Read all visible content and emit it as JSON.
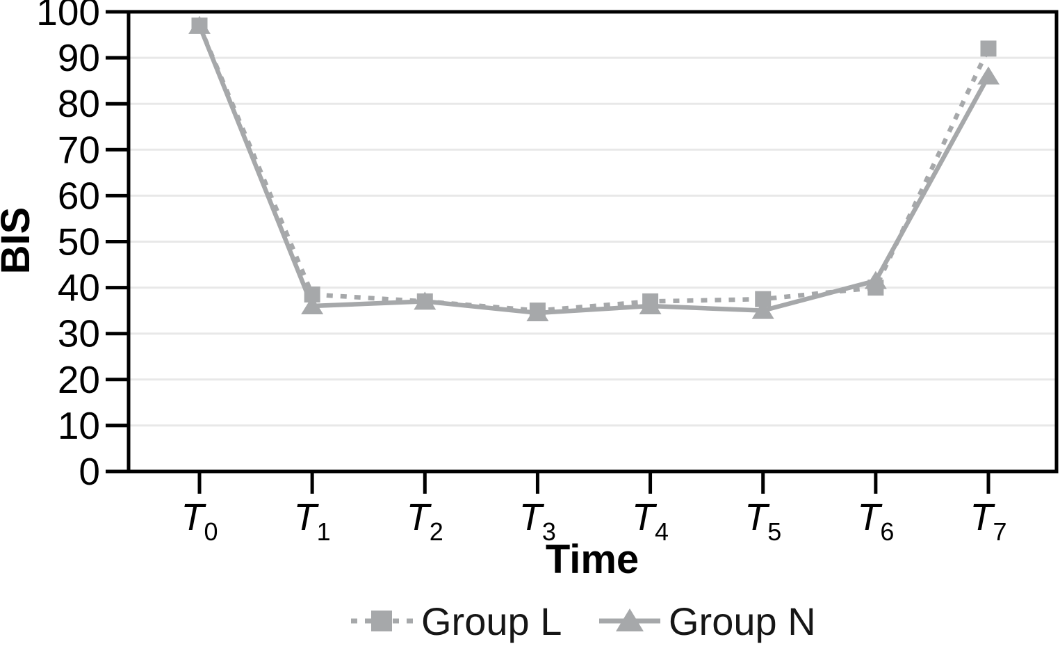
{
  "chart_data": {
    "type": "line",
    "title": "",
    "xlabel": "Time",
    "ylabel": "BIS",
    "ylim": [
      0,
      100
    ],
    "yticks": [
      0,
      10,
      20,
      30,
      40,
      50,
      60,
      70,
      80,
      90,
      100
    ],
    "y_tick_labels": [
      "0",
      "10",
      "20",
      "30",
      "40",
      "50",
      "60",
      "70",
      "80",
      "90",
      "100"
    ],
    "categories": [
      "T0",
      "T1",
      "T2",
      "T3",
      "T4",
      "T5",
      "T6",
      "T7"
    ],
    "x_tick_labels": [
      {
        "base": "T",
        "sub": "0"
      },
      {
        "base": "T",
        "sub": "1"
      },
      {
        "base": "T",
        "sub": "2"
      },
      {
        "base": "T",
        "sub": "3"
      },
      {
        "base": "T",
        "sub": "4"
      },
      {
        "base": "T",
        "sub": "5"
      },
      {
        "base": "T",
        "sub": "6"
      },
      {
        "base": "T",
        "sub": "7"
      }
    ],
    "series": [
      {
        "name": "Group L",
        "marker": "square",
        "line_style": "dashed",
        "values": [
          97,
          38.5,
          37,
          35,
          37,
          37.5,
          40,
          92
        ]
      },
      {
        "name": "Group N",
        "marker": "triangle",
        "line_style": "solid",
        "values": [
          97,
          36,
          37,
          34.5,
          36,
          35,
          41.5,
          86
        ]
      }
    ],
    "grid": "horizontal",
    "legend_position": "bottom-center",
    "colors": {
      "series": "#a6a8aa",
      "grid": "#e8e8e8",
      "axis": "#000000",
      "tick_label": "#000000",
      "legend_text": "#161616"
    }
  }
}
